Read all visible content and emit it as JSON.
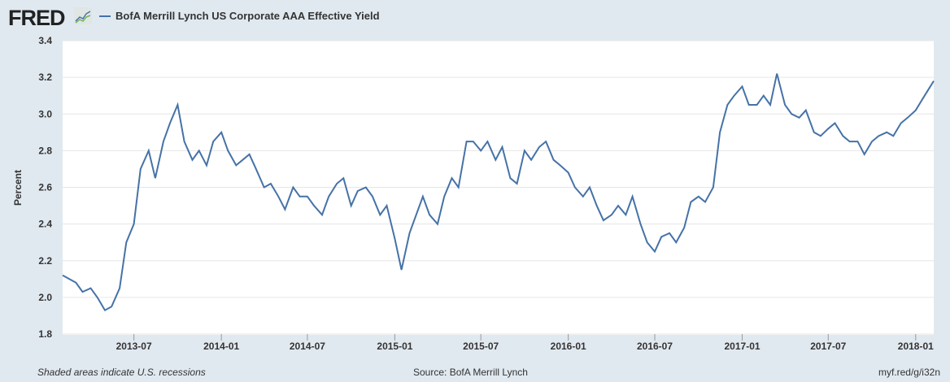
{
  "header": {
    "logo": "FRED",
    "logo_icon": "line-graph-icon",
    "series_title": "BofA Merrill Lynch US Corporate AAA Effective Yield"
  },
  "colors": {
    "series": "#4572a7",
    "background": "#e1e9f0",
    "grid": "#e6e6e6"
  },
  "chart_data": {
    "type": "line",
    "title": "BofA Merrill Lynch US Corporate AAA Effective Yield",
    "xlabel": "",
    "ylabel": "Percent",
    "ylim": [
      1.8,
      3.4
    ],
    "yticks": [
      "1.8",
      "2.0",
      "2.2",
      "2.4",
      "2.6",
      "2.8",
      "3.0",
      "3.2",
      "3.4"
    ],
    "xticks": [
      "2013-07",
      "2014-01",
      "2014-07",
      "2015-01",
      "2015-07",
      "2016-01",
      "2016-07",
      "2017-01",
      "2017-07",
      "2018-01"
    ],
    "xlim": [
      "2013-02-01",
      "2018-02-08"
    ],
    "grid": true,
    "legend": "top-left",
    "series": [
      {
        "name": "BofA Merrill Lynch US Corporate AAA Effective Yield",
        "x": [
          "2013-02-01",
          "2013-02-15",
          "2013-03-01",
          "2013-03-15",
          "2013-04-01",
          "2013-04-15",
          "2013-05-01",
          "2013-05-15",
          "2013-06-01",
          "2013-06-15",
          "2013-07-01",
          "2013-07-15",
          "2013-08-01",
          "2013-08-15",
          "2013-09-01",
          "2013-09-15",
          "2013-10-01",
          "2013-10-15",
          "2013-11-01",
          "2013-11-15",
          "2013-12-01",
          "2013-12-15",
          "2014-01-01",
          "2014-01-15",
          "2014-02-01",
          "2014-02-15",
          "2014-03-01",
          "2014-03-15",
          "2014-04-01",
          "2014-04-15",
          "2014-05-01",
          "2014-05-15",
          "2014-06-01",
          "2014-06-15",
          "2014-07-01",
          "2014-07-15",
          "2014-08-01",
          "2014-08-15",
          "2014-09-01",
          "2014-09-15",
          "2014-10-01",
          "2014-10-15",
          "2014-11-01",
          "2014-11-15",
          "2014-12-01",
          "2014-12-15",
          "2015-01-01",
          "2015-01-15",
          "2015-02-01",
          "2015-02-15",
          "2015-03-01",
          "2015-03-15",
          "2015-04-01",
          "2015-04-15",
          "2015-05-01",
          "2015-05-15",
          "2015-06-01",
          "2015-06-15",
          "2015-07-01",
          "2015-07-15",
          "2015-08-01",
          "2015-08-15",
          "2015-09-01",
          "2015-09-15",
          "2015-10-01",
          "2015-10-15",
          "2015-11-01",
          "2015-11-15",
          "2015-12-01",
          "2015-12-15",
          "2016-01-01",
          "2016-01-15",
          "2016-02-01",
          "2016-02-15",
          "2016-03-01",
          "2016-03-15",
          "2016-04-01",
          "2016-04-15",
          "2016-05-01",
          "2016-05-15",
          "2016-06-01",
          "2016-06-15",
          "2016-07-01",
          "2016-07-15",
          "2016-08-01",
          "2016-08-15",
          "2016-09-01",
          "2016-09-15",
          "2016-10-01",
          "2016-10-15",
          "2016-11-01",
          "2016-11-15",
          "2016-12-01",
          "2016-12-15",
          "2017-01-01",
          "2017-01-15",
          "2017-02-01",
          "2017-02-15",
          "2017-03-01",
          "2017-03-15",
          "2017-04-01",
          "2017-04-15",
          "2017-05-01",
          "2017-05-15",
          "2017-06-01",
          "2017-06-15",
          "2017-07-01",
          "2017-07-15",
          "2017-08-01",
          "2017-08-15",
          "2017-09-01",
          "2017-09-15",
          "2017-10-01",
          "2017-10-15",
          "2017-11-01",
          "2017-11-15",
          "2017-12-01",
          "2017-12-15",
          "2018-01-01",
          "2018-01-15",
          "2018-02-08"
        ],
        "y": [
          2.12,
          2.1,
          2.08,
          2.03,
          2.05,
          2.0,
          1.93,
          1.95,
          2.05,
          2.3,
          2.4,
          2.7,
          2.8,
          2.65,
          2.85,
          2.95,
          3.05,
          2.85,
          2.75,
          2.8,
          2.72,
          2.85,
          2.9,
          2.8,
          2.72,
          2.75,
          2.78,
          2.7,
          2.6,
          2.62,
          2.55,
          2.48,
          2.6,
          2.55,
          2.55,
          2.5,
          2.45,
          2.55,
          2.62,
          2.65,
          2.5,
          2.58,
          2.6,
          2.55,
          2.45,
          2.5,
          2.32,
          2.15,
          2.35,
          2.45,
          2.55,
          2.45,
          2.4,
          2.55,
          2.65,
          2.6,
          2.85,
          2.85,
          2.8,
          2.85,
          2.75,
          2.82,
          2.65,
          2.62,
          2.8,
          2.75,
          2.82,
          2.85,
          2.75,
          2.72,
          2.68,
          2.6,
          2.55,
          2.6,
          2.5,
          2.42,
          2.45,
          2.5,
          2.45,
          2.55,
          2.4,
          2.3,
          2.25,
          2.33,
          2.35,
          2.3,
          2.38,
          2.52,
          2.55,
          2.52,
          2.6,
          2.9,
          3.05,
          3.1,
          3.15,
          3.05,
          3.05,
          3.1,
          3.05,
          3.22,
          3.05,
          3.0,
          2.98,
          3.02,
          2.9,
          2.88,
          2.92,
          2.95,
          2.88,
          2.85,
          2.85,
          2.78,
          2.85,
          2.88,
          2.9,
          2.88,
          2.95,
          2.98,
          3.02,
          3.08,
          3.18
        ]
      }
    ]
  },
  "footer": {
    "note": "Shaded areas indicate U.S. recessions",
    "source": "Source: BofA Merrill Lynch",
    "link": "myf.red/g/i32n"
  }
}
